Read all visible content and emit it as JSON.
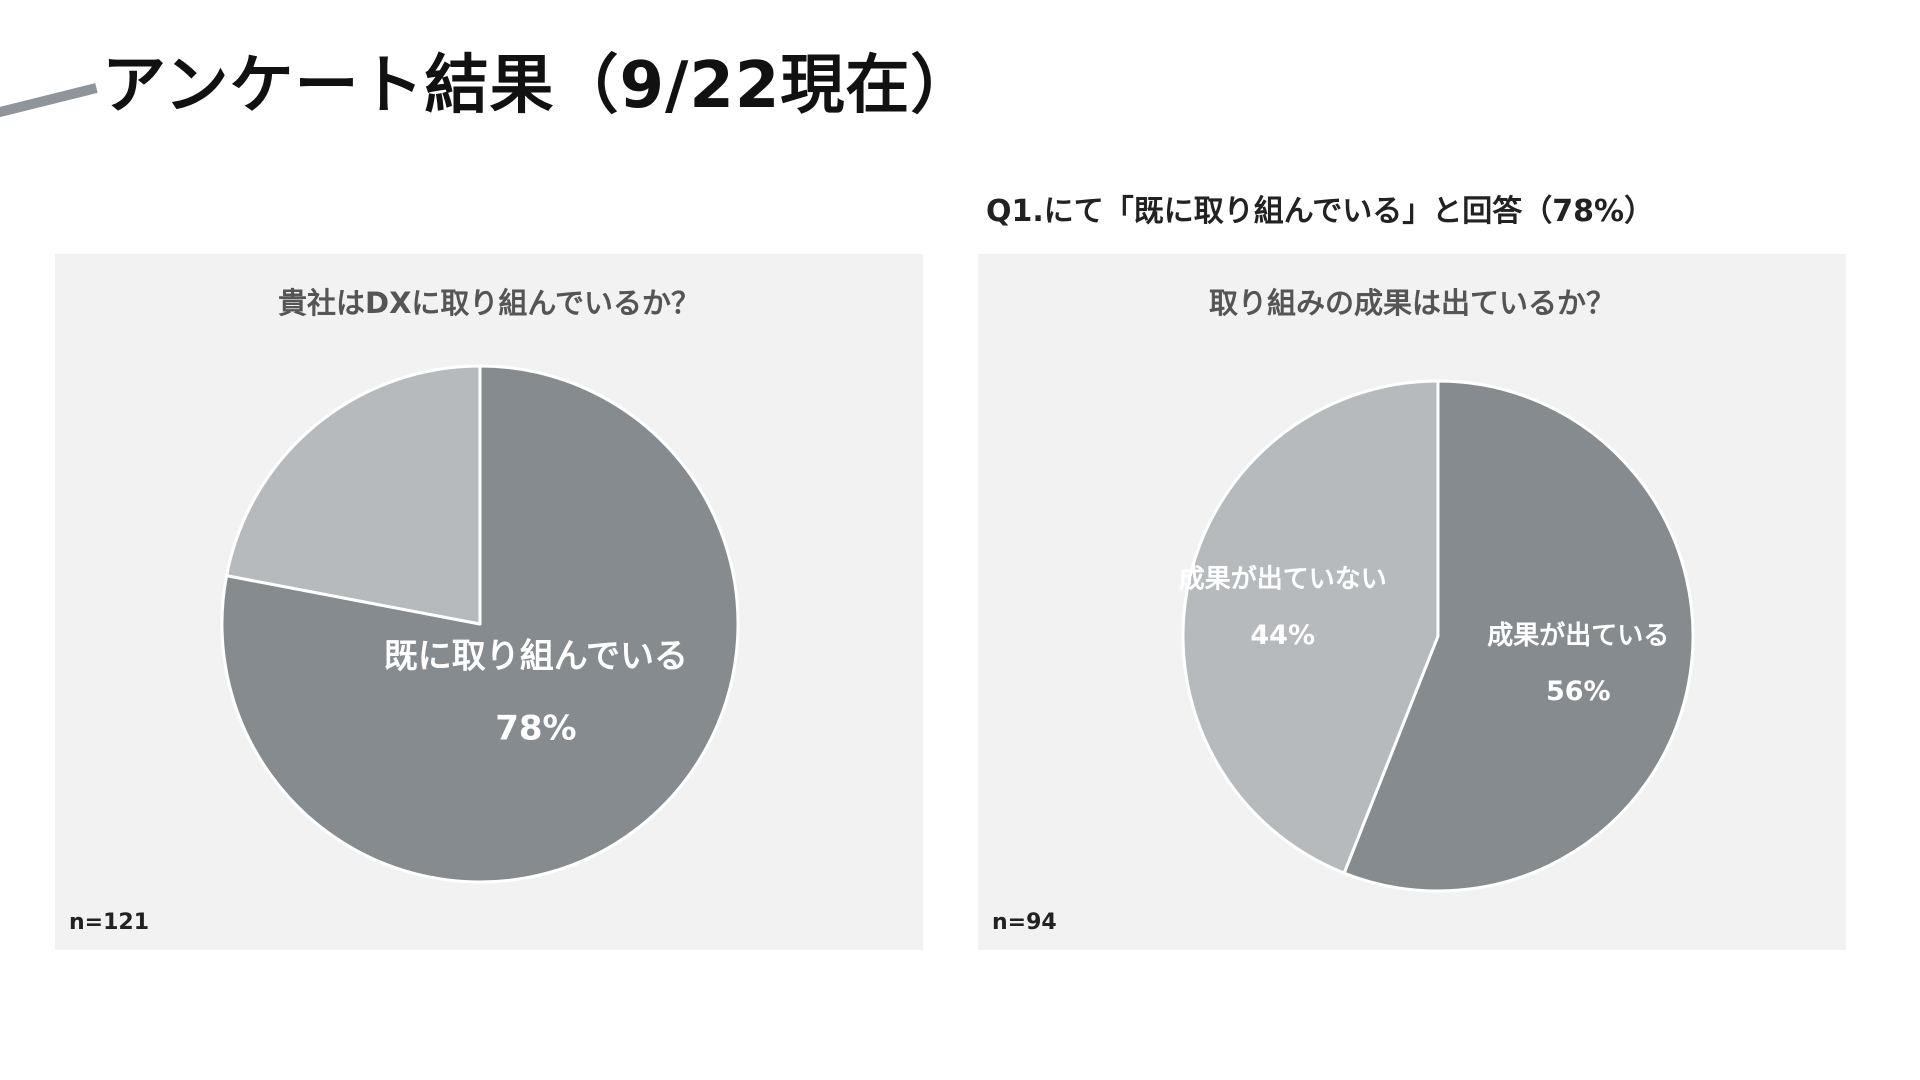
{
  "page": {
    "title": "アンケート結果（9/22現在）",
    "subtitle": "Q1.にて「既に取り組んでいる」と回答（78%）"
  },
  "colors": {
    "dark_slice": "#868b90",
    "light_slice": "#b6babd",
    "slice_border": "#ffffff",
    "label_text": "#ffffff",
    "panel_bg": "#f2f2f2"
  },
  "chart_data": [
    {
      "type": "pie",
      "title": "貴社はDXに取り組んでいるか？",
      "sample_size": "n=121",
      "slices": [
        {
          "label": "既に取り組んでいる",
          "value": 78,
          "value_label": "78%",
          "color": "#868b90",
          "show_label": true
        },
        {
          "label": "",
          "value": 22,
          "value_label": "",
          "color": "#b6babd",
          "show_label": false
        }
      ]
    },
    {
      "type": "pie",
      "title": "取り組みの成果は出ているか？",
      "sample_size": "n=94",
      "slices": [
        {
          "label": "成果が出ている",
          "value": 56,
          "value_label": "56%",
          "color": "#868b90",
          "show_label": true
        },
        {
          "label": "成果が出ていない",
          "value": 44,
          "value_label": "44%",
          "color": "#b6babd",
          "show_label": true
        }
      ]
    }
  ]
}
